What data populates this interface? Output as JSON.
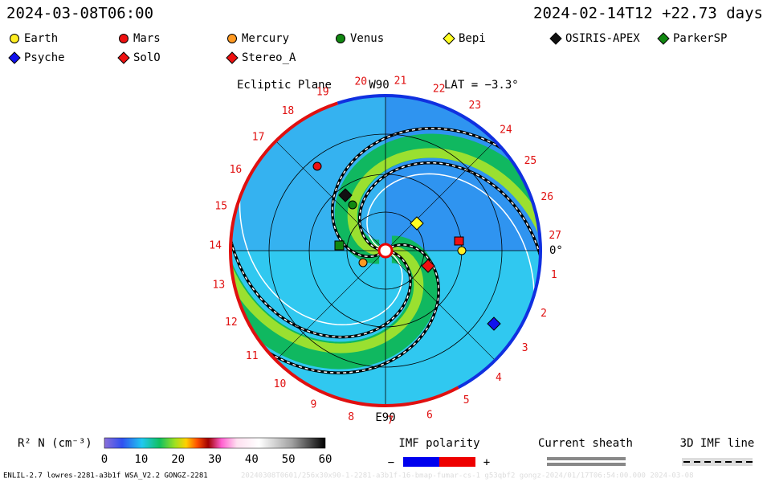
{
  "header": {
    "date_left": "2024-03-08T06:00",
    "date_right": "2024-02-14T12 +22.73 days"
  },
  "legend": [
    {
      "label": "Earth",
      "color": "#ffee22",
      "shape": "circle"
    },
    {
      "label": "Mars",
      "color": "#ee1111",
      "shape": "circle"
    },
    {
      "label": "Mercury",
      "color": "#ff9922",
      "shape": "circle"
    },
    {
      "label": "Venus",
      "color": "#118811",
      "shape": "circle"
    },
    {
      "label": "Bepi",
      "color": "#ffff22",
      "shape": "diamond"
    },
    {
      "label": "OSIRIS-APEX",
      "color": "#111111",
      "shape": "diamond"
    },
    {
      "label": "ParkerSP",
      "color": "#118811",
      "shape": "diamond"
    },
    {
      "label": "Psyche",
      "color": "#1111ee",
      "shape": "diamond"
    },
    {
      "label": "SolO",
      "color": "#ee1111",
      "shape": "diamond"
    },
    {
      "label": "Stereo_A",
      "color": "#ee1111",
      "shape": "diamond"
    }
  ],
  "plot": {
    "title": "Ecliptic Plane",
    "top_label": "W90",
    "bottom_label": "E90",
    "lat": "LAT = −3.3°",
    "zero_label": "0°",
    "rotation_labels": [
      "1",
      "2",
      "3",
      "4",
      "5",
      "6",
      "7",
      "8",
      "9",
      "10",
      "11",
      "12",
      "13",
      "14",
      "15",
      "16",
      "17",
      "18",
      "19",
      "20",
      "21",
      "22",
      "23",
      "24",
      "25",
      "26",
      "27"
    ]
  },
  "colorbar": {
    "label": "R² N (cm⁻³)",
    "ticks": [
      "0",
      "10",
      "20",
      "30",
      "40",
      "50",
      "60"
    ]
  },
  "imf": {
    "title": "IMF polarity",
    "minus": "−",
    "plus": "+"
  },
  "sheath": {
    "title": "Current sheath"
  },
  "line3d": {
    "title": "3D IMF line"
  },
  "footer": {
    "text": "ENLIL-2.7 lowres-2281-a3b1f WSA_V2.2 GONGZ-2281",
    "faint": "20240308T0601/256x30x90-1-2281-a3b1f-16-bmap-fumar-cs-1 g53qbf2 gongz-2024/01/17T06:54:00.000    2024-03-08"
  }
}
